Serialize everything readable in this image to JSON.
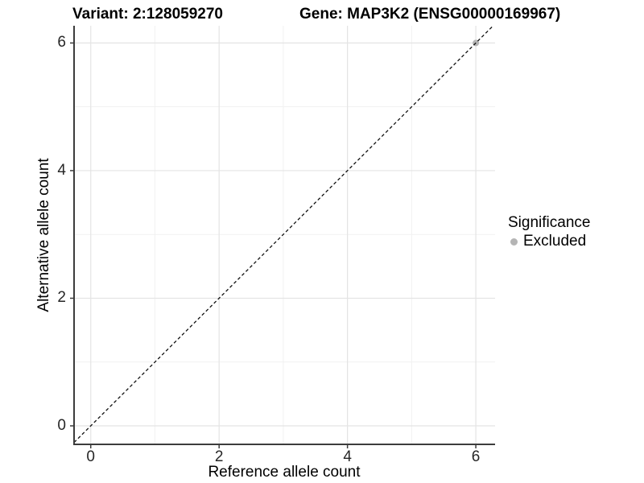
{
  "titles": {
    "variant": "Variant: 2:128059270",
    "gene": "Gene: MAP3K2 (ENSG00000169967)"
  },
  "chart_data": {
    "type": "scatter",
    "xlabel": "Reference allele count",
    "ylabel": "Alternative allele count",
    "xlim": [
      -0.26,
      6.3
    ],
    "ylim": [
      -0.29,
      6.27
    ],
    "xticks": [
      0,
      2,
      4,
      6
    ],
    "yticks": [
      0,
      2,
      4,
      6
    ],
    "minor_xticks": [
      1,
      3,
      5
    ],
    "minor_yticks": [
      1,
      3,
      5
    ],
    "grid": true,
    "abline": {
      "slope": 1,
      "intercept": 0,
      "linetype": "dashed",
      "color": "#111111"
    },
    "series": [
      {
        "name": "Excluded",
        "color": "#b5b5b5",
        "points": [
          [
            6,
            6
          ]
        ]
      }
    ],
    "legend": {
      "title": "Significance",
      "position": "right",
      "items": [
        {
          "label": "Excluded",
          "color": "#b5b5b5"
        }
      ]
    }
  },
  "colors": {
    "background": "#ffffff",
    "grid_major": "#e4e4e4",
    "grid_minor": "#f1f1f1",
    "axis_line": "#3c3c3c",
    "tick_mark": "#3c3c3c",
    "tick_text": "#262626",
    "title_text": "#000000"
  }
}
